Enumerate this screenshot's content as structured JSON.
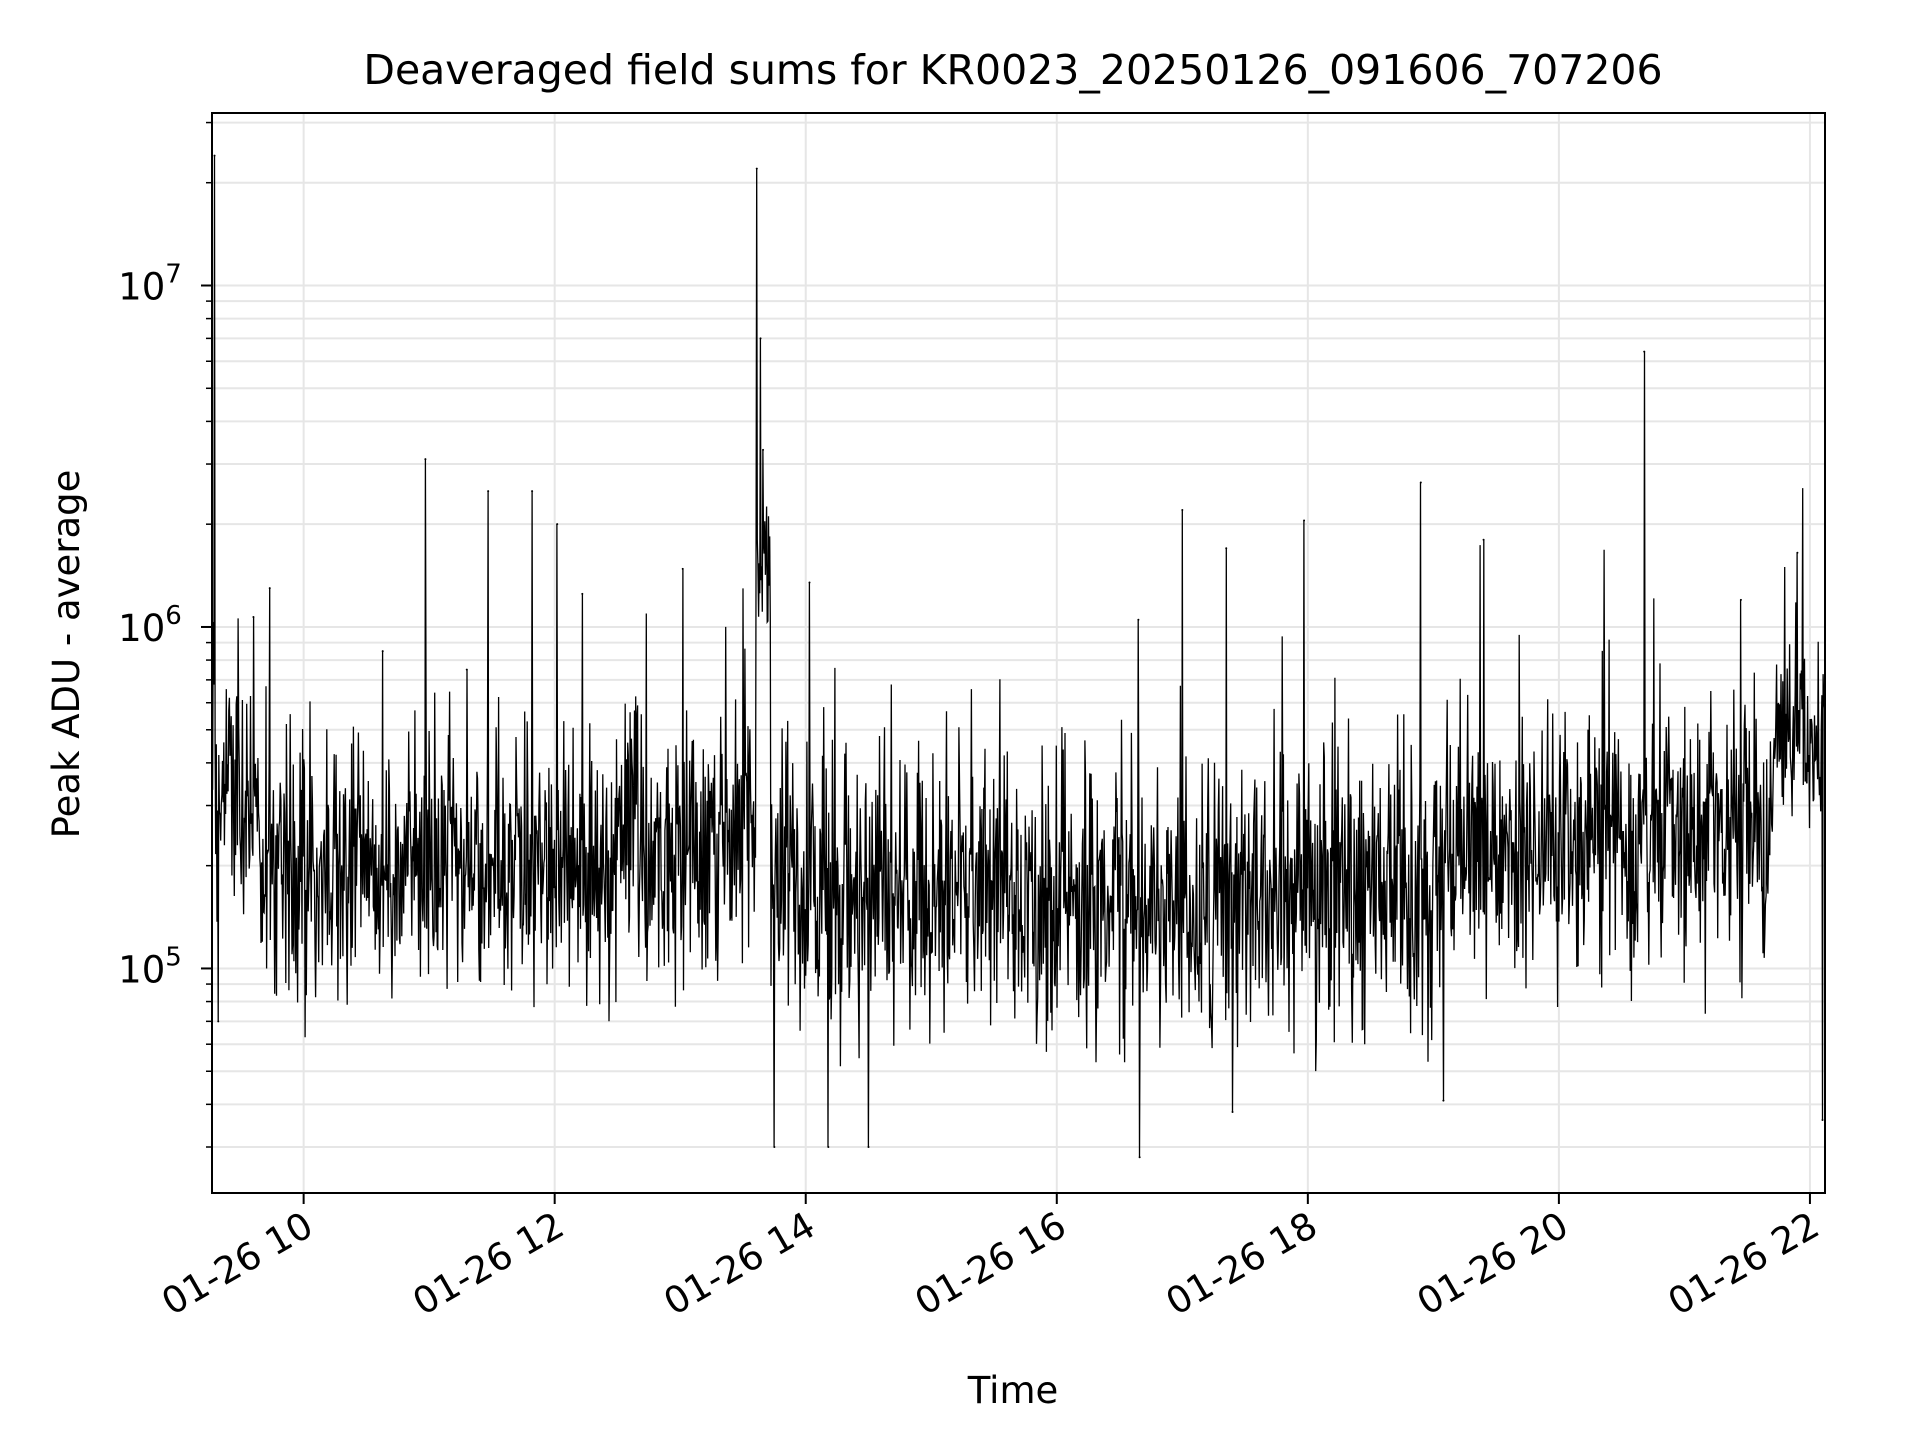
{
  "chart_data": {
    "type": "line",
    "title": "Deaveraged field sums for KR0023_20250126_091606_707206",
    "xlabel": "Time",
    "ylabel": "Peak ADU - average",
    "yscale": "log",
    "ylim": [
      22000,
      32000000
    ],
    "xlim_hours": [
      9.27,
      22.12
    ],
    "grid": true,
    "grid_minor": true,
    "line_color": "#000000",
    "grid_color": "#e6e6e6",
    "x_ticks": [
      {
        "hour": 10,
        "label": "01-26 10"
      },
      {
        "hour": 12,
        "label": "01-26 12"
      },
      {
        "hour": 14,
        "label": "01-26 14"
      },
      {
        "hour": 16,
        "label": "01-26 16"
      },
      {
        "hour": 18,
        "label": "01-26 18"
      },
      {
        "hour": 20,
        "label": "01-26 20"
      },
      {
        "hour": 22,
        "label": "01-26 22"
      }
    ],
    "y_ticks": [
      {
        "value": 100000,
        "base": "10",
        "exp": "5"
      },
      {
        "value": 1000000,
        "base": "10",
        "exp": "6"
      },
      {
        "value": 10000000,
        "base": "10",
        "exp": "7"
      }
    ],
    "baseline_segments": [
      {
        "start": 9.27,
        "end": 9.65,
        "median": 320000,
        "spread": 0.55
      },
      {
        "start": 9.65,
        "end": 10.3,
        "median": 190000,
        "spread": 0.6
      },
      {
        "start": 10.3,
        "end": 12.5,
        "median": 200000,
        "spread": 0.55
      },
      {
        "start": 12.5,
        "end": 13.6,
        "median": 230000,
        "spread": 0.6
      },
      {
        "start": 13.6,
        "end": 13.72,
        "median": 1500000,
        "spread": 0.35
      },
      {
        "start": 13.72,
        "end": 15.5,
        "median": 160000,
        "spread": 0.6
      },
      {
        "start": 15.5,
        "end": 17.5,
        "median": 150000,
        "spread": 0.6
      },
      {
        "start": 17.5,
        "end": 19.0,
        "median": 170000,
        "spread": 0.6
      },
      {
        "start": 19.0,
        "end": 20.6,
        "median": 220000,
        "spread": 0.6
      },
      {
        "start": 20.6,
        "end": 21.7,
        "median": 240000,
        "spread": 0.6
      },
      {
        "start": 21.7,
        "end": 22.12,
        "median": 450000,
        "spread": 0.5
      }
    ],
    "peaks": [
      {
        "hour": 9.29,
        "value": 24000000
      },
      {
        "hour": 9.32,
        "value": 70000
      },
      {
        "hour": 9.73,
        "value": 1300000
      },
      {
        "hour": 9.6,
        "value": 1070000
      },
      {
        "hour": 10.63,
        "value": 850000
      },
      {
        "hour": 10.97,
        "value": 3100000
      },
      {
        "hour": 11.3,
        "value": 750000
      },
      {
        "hour": 11.47,
        "value": 2500000
      },
      {
        "hour": 11.82,
        "value": 2500000
      },
      {
        "hour": 12.02,
        "value": 2000000
      },
      {
        "hour": 12.22,
        "value": 1250000
      },
      {
        "hour": 13.02,
        "value": 1480000
      },
      {
        "hour": 13.61,
        "value": 22000000
      },
      {
        "hour": 13.64,
        "value": 7000000
      },
      {
        "hour": 13.66,
        "value": 3300000
      },
      {
        "hour": 14.03,
        "value": 1350000
      },
      {
        "hour": 16.65,
        "value": 1050000
      },
      {
        "hour": 17.0,
        "value": 2200000
      },
      {
        "hour": 17.35,
        "value": 1700000
      },
      {
        "hour": 17.97,
        "value": 2050000
      },
      {
        "hour": 18.9,
        "value": 2650000
      },
      {
        "hour": 19.4,
        "value": 1800000
      },
      {
        "hour": 20.68,
        "value": 6400000
      },
      {
        "hour": 21.9,
        "value": 1650000
      },
      {
        "hour": 21.45,
        "value": 1200000
      }
    ],
    "dips": [
      {
        "hour": 13.75,
        "value": 30000
      },
      {
        "hour": 14.18,
        "value": 30000
      },
      {
        "hour": 14.5,
        "value": 30000
      },
      {
        "hour": 16.66,
        "value": 28000
      },
      {
        "hour": 17.4,
        "value": 38000
      },
      {
        "hour": 19.08,
        "value": 41000
      },
      {
        "hour": 22.1,
        "value": 36000
      }
    ]
  }
}
